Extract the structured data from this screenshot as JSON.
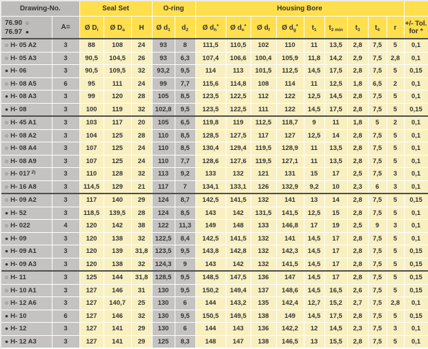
{
  "colors": {
    "header_yellow": "#ffdf4d",
    "cell_yellow": "#f9f0c2",
    "header_gray": "#bdbcba",
    "cell_gray": "#c5c3c1",
    "separator_dark": "#4d4d4d",
    "text": "#333333"
  },
  "table": {
    "groups": [
      {
        "label": "Drawing-No."
      },
      {
        "label": "Seal Set"
      },
      {
        "label": "O-ring"
      },
      {
        "label": "Housing Bore"
      }
    ],
    "legend": {
      "line1": {
        "text": "76.90",
        "marker": "open"
      },
      "line2": {
        "text": "76.97",
        "marker": "filled"
      }
    },
    "a_label": "A=",
    "markers": {
      "open": "○",
      "filled": "●"
    },
    "columns": [
      {
        "id": "di",
        "base": "Ø D",
        "sub": "i",
        "sup": ""
      },
      {
        "id": "da",
        "base": "Ø D",
        "sub": "a",
        "sup": ""
      },
      {
        "id": "h",
        "base": "H",
        "sub": "",
        "sup": ""
      },
      {
        "id": "d1",
        "base": "Ø d",
        "sub": "1",
        "sup": ""
      },
      {
        "id": "d2",
        "base": "d",
        "sub": "2",
        "sup": ""
      },
      {
        "id": "dh",
        "base": "Ø d",
        "sub": "h",
        "sup": "*"
      },
      {
        "id": "de",
        "base": "Ø d",
        "sub": "e",
        "sup": "*"
      },
      {
        "id": "df",
        "base": "Ø d",
        "sub": "f",
        "sup": ""
      },
      {
        "id": "dg",
        "base": "Ø d",
        "sub": "g",
        "sup": "*"
      },
      {
        "id": "t1",
        "base": "t",
        "sub": "1",
        "sup": ""
      },
      {
        "id": "t2min",
        "base": "t",
        "sub": "2 min",
        "sup": ""
      },
      {
        "id": "t3",
        "base": "t",
        "sub": "3",
        "sup": ""
      },
      {
        "id": "t4",
        "base": "t",
        "sub": "4",
        "sup": ""
      },
      {
        "id": "r",
        "base": "r",
        "sub": "",
        "sup": ""
      }
    ],
    "tol_header": {
      "line1": "+/- Tol.",
      "line2": "for *"
    },
    "group_breaks_after": [
      6,
      12,
      18
    ],
    "rows": [
      {
        "marker": "open",
        "name": "H- 05 A2",
        "note": "",
        "values": [
          "3",
          "88",
          "108",
          "24",
          "93",
          "8",
          "111,5",
          "110,5",
          "102",
          "110",
          "11",
          "13,5",
          "2,8",
          "7,5",
          "5",
          "0,1"
        ]
      },
      {
        "marker": "open",
        "name": "H- 05 A3",
        "note": "",
        "values": [
          "3",
          "90,5",
          "104,5",
          "26",
          "93",
          "6,3",
          "107,4",
          "106,6",
          "100,4",
          "105,9",
          "11,8",
          "14,2",
          "2,9",
          "7,5",
          "2,8",
          "0,1"
        ]
      },
      {
        "marker": "filled",
        "name": "H- 06",
        "note": "",
        "values": [
          "3",
          "90,5",
          "109,5",
          "32",
          "93,2",
          "9,5",
          "114",
          "113",
          "101,5",
          "112,5",
          "14,5",
          "17,5",
          "2,8",
          "7,5",
          "5",
          "0,15"
        ]
      },
      {
        "marker": "open",
        "name": "H- 08 A5",
        "note": "",
        "values": [
          "6",
          "95",
          "111",
          "24",
          "99",
          "7,7",
          "115,6",
          "114,8",
          "108",
          "114",
          "11",
          "12,5",
          "1,8",
          "6,5",
          "2",
          "0,1"
        ]
      },
      {
        "marker": "filled",
        "name": "H- 08 A3",
        "note": "",
        "values": [
          "3",
          "99",
          "120",
          "28",
          "105",
          "8,5",
          "123,5",
          "122,5",
          "112",
          "122",
          "12,5",
          "14,5",
          "2,8",
          "7,5",
          "5",
          "0,1"
        ]
      },
      {
        "marker": "filled",
        "name": "H- 08",
        "note": "",
        "values": [
          "3",
          "100",
          "119",
          "32",
          "102,8",
          "9,5",
          "123,5",
          "122,5",
          "111",
          "122",
          "14,5",
          "17,5",
          "2,8",
          "7,5",
          "5",
          "0,15"
        ]
      },
      {
        "marker": "open",
        "name": "H- 45 A1",
        "note": "",
        "values": [
          "3",
          "103",
          "117",
          "20",
          "105",
          "6,5",
          "119,8",
          "119",
          "112,5",
          "118,7",
          "9",
          "11",
          "1,8",
          "5",
          "2",
          "0,1"
        ]
      },
      {
        "marker": "open",
        "name": "H- 08 A2",
        "note": "",
        "values": [
          "3",
          "104",
          "125",
          "28",
          "110",
          "8,5",
          "128,5",
          "127,5",
          "117",
          "127",
          "12,5",
          "14",
          "2,8",
          "7,5",
          "5",
          "0,1"
        ]
      },
      {
        "marker": "open",
        "name": "H- 08 A4",
        "note": "",
        "values": [
          "3",
          "107",
          "125",
          "24",
          "110",
          "8,5",
          "130,4",
          "129,4",
          "119,5",
          "128,9",
          "11",
          "13,5",
          "2,8",
          "7,5",
          "5",
          "0,1"
        ]
      },
      {
        "marker": "open",
        "name": "H- 08 A9",
        "note": "",
        "values": [
          "3",
          "107",
          "125",
          "24",
          "110",
          "7,7",
          "128,6",
          "127,6",
          "119,5",
          "127,1",
          "11",
          "13,5",
          "2,8",
          "7,5",
          "5",
          "0,1"
        ]
      },
      {
        "marker": "open",
        "name": "H- 017",
        "note": "2)",
        "values": [
          "3",
          "110",
          "128",
          "32",
          "113",
          "9,2",
          "133",
          "132",
          "121",
          "131",
          "15",
          "17",
          "2,5",
          "7,5",
          "3",
          "0,1"
        ]
      },
      {
        "marker": "open",
        "name": "H- 16 A8",
        "note": "",
        "values": [
          "3",
          "114,5",
          "129",
          "21",
          "117",
          "7",
          "134,1",
          "133,1",
          "126",
          "132,9",
          "9,2",
          "10",
          "2,3",
          "6",
          "3",
          "0,1"
        ]
      },
      {
        "marker": "open",
        "name": "H- 09 A2",
        "note": "",
        "values": [
          "3",
          "117",
          "140",
          "29",
          "124",
          "8,7",
          "142,5",
          "141,5",
          "132",
          "141",
          "13",
          "14",
          "2,8",
          "7,5",
          "5",
          "0,15"
        ]
      },
      {
        "marker": "filled",
        "name": "H- 52",
        "note": "",
        "values": [
          "3",
          "118,5",
          "139,5",
          "28",
          "124",
          "8,5",
          "143",
          "142",
          "131,5",
          "141,5",
          "12,5",
          "15",
          "2,8",
          "7,5",
          "5",
          "0,1"
        ]
      },
      {
        "marker": "open",
        "name": "H- 022",
        "note": "",
        "values": [
          "4",
          "120",
          "142",
          "38",
          "122",
          "11,3",
          "149",
          "148",
          "133",
          "146,8",
          "17",
          "19",
          "2,5",
          "9",
          "3",
          "0,1"
        ]
      },
      {
        "marker": "filled",
        "name": "H- 09",
        "note": "",
        "values": [
          "3",
          "120",
          "138",
          "32",
          "122,5",
          "8,4",
          "142,5",
          "141,5",
          "132",
          "141",
          "14,5",
          "17",
          "2,8",
          "7,5",
          "5",
          "0,1"
        ]
      },
      {
        "marker": "filled",
        "name": "H- 09 A1",
        "note": "",
        "values": [
          "3",
          "120",
          "139",
          "31,8",
          "123,5",
          "9,5",
          "143,8",
          "142,8",
          "132",
          "142,3",
          "14,5",
          "17",
          "2,8",
          "7,5",
          "5",
          "0,15"
        ]
      },
      {
        "marker": "filled",
        "name": "H- 09 A3",
        "note": "",
        "values": [
          "3",
          "120",
          "138",
          "32",
          "124,3",
          "9",
          "143",
          "142",
          "132",
          "141,5",
          "14,5",
          "17",
          "2,8",
          "7,5",
          "5",
          "0,15"
        ]
      },
      {
        "marker": "open",
        "name": "H- 11",
        "note": "",
        "values": [
          "3",
          "125",
          "144",
          "31,8",
          "128,5",
          "9,5",
          "148,5",
          "147,5",
          "136",
          "147",
          "14,5",
          "17",
          "2,8",
          "7,5",
          "5",
          "0,15"
        ]
      },
      {
        "marker": "open",
        "name": "H- 10 A1",
        "note": "",
        "values": [
          "3",
          "127",
          "146",
          "31",
          "130",
          "9,5",
          "150,2",
          "149,4",
          "137",
          "148,6",
          "14,5",
          "16,5",
          "2,6",
          "7,5",
          "5",
          "0,15"
        ]
      },
      {
        "marker": "open",
        "name": "H- 12 A6",
        "note": "",
        "values": [
          "3",
          "127",
          "140,7",
          "25",
          "130",
          "6",
          "144",
          "143,2",
          "135",
          "142,4",
          "12,7",
          "15,2",
          "2,7",
          "7,5",
          "2,8",
          "0,1"
        ]
      },
      {
        "marker": "filled",
        "name": "H- 10",
        "note": "",
        "values": [
          "6",
          "127",
          "146",
          "32",
          "130",
          "9,5",
          "150,5",
          "149,5",
          "138",
          "149",
          "14,5",
          "17,5",
          "2,8",
          "7,5",
          "5",
          "0,15"
        ]
      },
      {
        "marker": "filled",
        "name": "H- 12",
        "note": "",
        "values": [
          "3",
          "127",
          "141",
          "29",
          "130",
          "6",
          "144",
          "143",
          "136",
          "142,2",
          "12",
          "14,5",
          "2,3",
          "7,5",
          "3",
          "0,1"
        ]
      },
      {
        "marker": "filled",
        "name": "H- 12 A3",
        "note": "",
        "values": [
          "3",
          "127",
          "141",
          "29",
          "125",
          "8,3",
          "148",
          "147",
          "138",
          "146,5",
          "13",
          "15,5",
          "2,8",
          "7,5",
          "5",
          "0,1"
        ]
      }
    ]
  }
}
